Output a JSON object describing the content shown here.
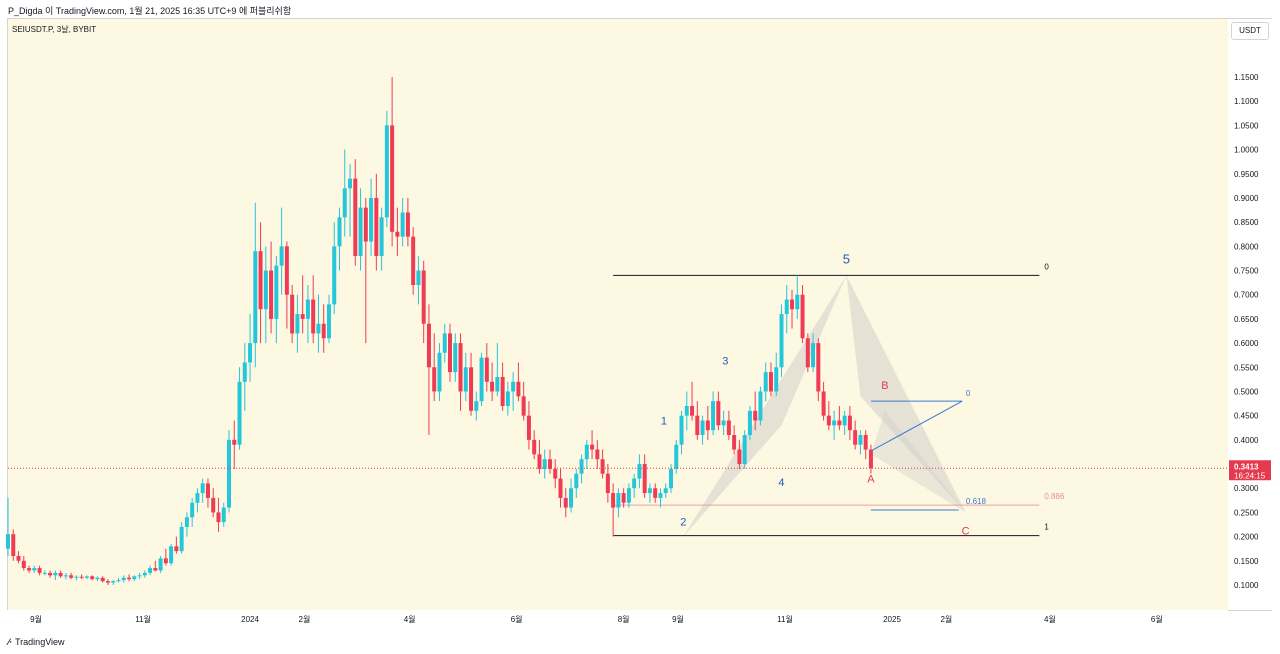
{
  "header": {
    "attribution": "P_Digda 이 TradingView.com, 1월 21, 2025 16:35 UTC+9 에 퍼블리쉬함",
    "symbol": "SEIUSDT.P, 3날, BYBIT"
  },
  "price_axis": {
    "currency": "USDT",
    "ticks": [
      "1.1500",
      "1.1000",
      "1.0500",
      "1.0000",
      "0.9500",
      "0.9000",
      "0.8500",
      "0.8000",
      "0.7500",
      "0.7000",
      "0.6500",
      "0.6000",
      "0.5500",
      "0.5000",
      "0.4500",
      "0.4000",
      "0.3500",
      "0.3000",
      "0.2500",
      "0.2000",
      "0.1500",
      "0.1000"
    ],
    "current_price": "0.3413",
    "countdown": "16:24:15"
  },
  "time_axis": {
    "ticks": [
      "9월",
      "11월",
      "2024",
      "2월",
      "4월",
      "6월",
      "8월",
      "9월",
      "11월",
      "2025",
      "2월",
      "4월",
      "6월"
    ]
  },
  "footer": {
    "brand": "TradingView"
  },
  "annotations": {
    "wave_labels": [
      "1",
      "2",
      "3",
      "4",
      "5"
    ],
    "corrective_labels": [
      "A",
      "B",
      "C"
    ],
    "fib_right": {
      "level0": "0",
      "level0886": "0.886",
      "level1": "1"
    },
    "fib_mid": {
      "level0": "0",
      "level0618": "0.618"
    }
  },
  "colors": {
    "up": "#26c6da",
    "down": "#ef3b53",
    "wave_label": "#1e5bbf",
    "abc_label": "#e53950",
    "price_line": "#e53950",
    "pattern_fill": "#c8c8c8"
  },
  "chart_data": {
    "type": "candlestick",
    "timeframe": "3D",
    "ylim": [
      0.05,
      1.18
    ],
    "x_range": [
      "2023-08-16",
      "2025-07-11"
    ],
    "wave_points": [
      {
        "label": "1",
        "date": "2024-08-24",
        "price": 0.37
      },
      {
        "label": "2",
        "date": "2024-09-04",
        "price": 0.26
      },
      {
        "label": "3",
        "date": "2024-09-28",
        "price": 0.51
      },
      {
        "label": "4",
        "date": "2024-10-30",
        "price": 0.35
      },
      {
        "label": "5",
        "date": "2024-12-06",
        "price": 0.74
      }
    ],
    "abc_points": [
      {
        "label": "A",
        "date": "2024-12-20",
        "price": 0.37
      },
      {
        "label": "B",
        "date": "2024-12-28",
        "price": 0.48
      },
      {
        "label": "C",
        "date": "2025-02-12",
        "price": 0.25
      }
    ],
    "fib_levels": [
      {
        "label": "0",
        "price": 0.74
      },
      {
        "label": "0.886",
        "price": 0.265
      },
      {
        "label": "1",
        "price": 0.202
      }
    ],
    "fib_mid_levels": [
      {
        "label": "0",
        "price": 0.48
      },
      {
        "label": "0.618",
        "price": 0.255
      }
    ],
    "candles": [
      [
        "2023-08-16",
        0.175,
        0.28,
        0.16,
        0.205
      ],
      [
        "2023-08-19",
        0.205,
        0.215,
        0.15,
        0.16
      ],
      [
        "2023-08-22",
        0.16,
        0.17,
        0.145,
        0.15
      ],
      [
        "2023-08-25",
        0.15,
        0.16,
        0.13,
        0.135
      ],
      [
        "2023-08-28",
        0.135,
        0.14,
        0.125,
        0.13
      ],
      [
        "2023-08-31",
        0.13,
        0.14,
        0.125,
        0.135
      ],
      [
        "2023-09-03",
        0.135,
        0.14,
        0.12,
        0.125
      ],
      [
        "2023-09-06",
        0.125,
        0.13,
        0.12,
        0.125
      ],
      [
        "2023-09-09",
        0.125,
        0.13,
        0.115,
        0.12
      ],
      [
        "2023-09-12",
        0.12,
        0.13,
        0.11,
        0.125
      ],
      [
        "2023-09-15",
        0.125,
        0.13,
        0.115,
        0.118
      ],
      [
        "2023-09-18",
        0.118,
        0.125,
        0.112,
        0.12
      ],
      [
        "2023-09-21",
        0.12,
        0.125,
        0.112,
        0.115
      ],
      [
        "2023-09-24",
        0.115,
        0.12,
        0.11,
        0.117
      ],
      [
        "2023-09-27",
        0.117,
        0.122,
        0.112,
        0.115
      ],
      [
        "2023-09-30",
        0.115,
        0.12,
        0.112,
        0.118
      ],
      [
        "2023-10-03",
        0.118,
        0.12,
        0.11,
        0.112
      ],
      [
        "2023-10-06",
        0.112,
        0.118,
        0.108,
        0.115
      ],
      [
        "2023-10-09",
        0.115,
        0.118,
        0.105,
        0.108
      ],
      [
        "2023-10-12",
        0.108,
        0.112,
        0.1,
        0.105
      ],
      [
        "2023-10-15",
        0.105,
        0.11,
        0.1,
        0.108
      ],
      [
        "2023-10-18",
        0.108,
        0.115,
        0.105,
        0.11
      ],
      [
        "2023-10-21",
        0.11,
        0.12,
        0.105,
        0.115
      ],
      [
        "2023-10-24",
        0.115,
        0.122,
        0.108,
        0.112
      ],
      [
        "2023-10-27",
        0.112,
        0.12,
        0.108,
        0.118
      ],
      [
        "2023-10-30",
        0.118,
        0.125,
        0.112,
        0.12
      ],
      [
        "2023-11-02",
        0.12,
        0.13,
        0.115,
        0.125
      ],
      [
        "2023-11-05",
        0.125,
        0.14,
        0.12,
        0.135
      ],
      [
        "2023-11-08",
        0.135,
        0.15,
        0.128,
        0.13
      ],
      [
        "2023-11-11",
        0.13,
        0.16,
        0.125,
        0.155
      ],
      [
        "2023-11-14",
        0.155,
        0.175,
        0.14,
        0.145
      ],
      [
        "2023-11-17",
        0.145,
        0.185,
        0.14,
        0.18
      ],
      [
        "2023-11-20",
        0.18,
        0.2,
        0.165,
        0.17
      ],
      [
        "2023-11-23",
        0.17,
        0.23,
        0.165,
        0.22
      ],
      [
        "2023-11-26",
        0.22,
        0.25,
        0.2,
        0.24
      ],
      [
        "2023-11-29",
        0.24,
        0.28,
        0.22,
        0.27
      ],
      [
        "2023-12-02",
        0.27,
        0.3,
        0.25,
        0.29
      ],
      [
        "2023-12-05",
        0.29,
        0.32,
        0.27,
        0.31
      ],
      [
        "2023-12-08",
        0.31,
        0.32,
        0.26,
        0.28
      ],
      [
        "2023-12-11",
        0.28,
        0.3,
        0.24,
        0.25
      ],
      [
        "2023-12-14",
        0.25,
        0.28,
        0.21,
        0.23
      ],
      [
        "2023-12-17",
        0.23,
        0.27,
        0.22,
        0.26
      ],
      [
        "2023-12-20",
        0.26,
        0.42,
        0.25,
        0.4
      ],
      [
        "2023-12-23",
        0.4,
        0.44,
        0.34,
        0.39
      ],
      [
        "2023-12-26",
        0.39,
        0.55,
        0.38,
        0.52
      ],
      [
        "2023-12-29",
        0.52,
        0.6,
        0.46,
        0.56
      ],
      [
        "2024-01-01",
        0.56,
        0.66,
        0.52,
        0.6
      ],
      [
        "2024-01-04",
        0.6,
        0.89,
        0.55,
        0.79
      ],
      [
        "2024-01-07",
        0.79,
        0.85,
        0.6,
        0.67
      ],
      [
        "2024-01-10",
        0.67,
        0.8,
        0.6,
        0.75
      ],
      [
        "2024-01-13",
        0.75,
        0.81,
        0.62,
        0.65
      ],
      [
        "2024-01-16",
        0.65,
        0.78,
        0.6,
        0.76
      ],
      [
        "2024-01-19",
        0.76,
        0.88,
        0.7,
        0.8
      ],
      [
        "2024-01-22",
        0.8,
        0.81,
        0.63,
        0.7
      ],
      [
        "2024-01-25",
        0.7,
        0.72,
        0.6,
        0.62
      ],
      [
        "2024-01-28",
        0.62,
        0.7,
        0.58,
        0.66
      ],
      [
        "2024-01-31",
        0.66,
        0.74,
        0.62,
        0.65
      ],
      [
        "2024-02-03",
        0.65,
        0.72,
        0.6,
        0.69
      ],
      [
        "2024-02-06",
        0.69,
        0.74,
        0.6,
        0.62
      ],
      [
        "2024-02-09",
        0.62,
        0.7,
        0.58,
        0.64
      ],
      [
        "2024-02-12",
        0.64,
        0.68,
        0.58,
        0.61
      ],
      [
        "2024-02-15",
        0.61,
        0.7,
        0.6,
        0.68
      ],
      [
        "2024-02-18",
        0.68,
        0.85,
        0.66,
        0.8
      ],
      [
        "2024-02-21",
        0.8,
        0.88,
        0.75,
        0.86
      ],
      [
        "2024-02-24",
        0.86,
        1.0,
        0.82,
        0.92
      ],
      [
        "2024-02-27",
        0.92,
        0.97,
        0.82,
        0.94
      ],
      [
        "2024-03-01",
        0.94,
        0.98,
        0.76,
        0.78
      ],
      [
        "2024-03-04",
        0.78,
        0.92,
        0.75,
        0.88
      ],
      [
        "2024-03-07",
        0.88,
        0.9,
        0.6,
        0.81
      ],
      [
        "2024-03-10",
        0.81,
        0.94,
        0.78,
        0.9
      ],
      [
        "2024-03-13",
        0.9,
        0.95,
        0.75,
        0.78
      ],
      [
        "2024-03-16",
        0.78,
        0.88,
        0.75,
        0.86
      ],
      [
        "2024-03-19",
        0.86,
        1.08,
        0.84,
        1.05
      ],
      [
        "2024-03-22",
        1.05,
        1.15,
        0.8,
        0.83
      ],
      [
        "2024-03-25",
        0.83,
        0.88,
        0.78,
        0.82
      ],
      [
        "2024-03-28",
        0.82,
        0.9,
        0.8,
        0.87
      ],
      [
        "2024-03-31",
        0.87,
        0.9,
        0.8,
        0.82
      ],
      [
        "2024-04-03",
        0.82,
        0.84,
        0.7,
        0.72
      ],
      [
        "2024-04-06",
        0.72,
        0.78,
        0.68,
        0.75
      ],
      [
        "2024-04-09",
        0.75,
        0.77,
        0.6,
        0.64
      ],
      [
        "2024-04-12",
        0.64,
        0.68,
        0.41,
        0.55
      ],
      [
        "2024-04-15",
        0.55,
        0.62,
        0.48,
        0.5
      ],
      [
        "2024-04-18",
        0.5,
        0.6,
        0.48,
        0.58
      ],
      [
        "2024-04-21",
        0.58,
        0.64,
        0.56,
        0.62
      ],
      [
        "2024-04-24",
        0.62,
        0.64,
        0.52,
        0.54
      ],
      [
        "2024-04-27",
        0.54,
        0.62,
        0.52,
        0.6
      ],
      [
        "2024-04-30",
        0.6,
        0.62,
        0.46,
        0.5
      ],
      [
        "2024-05-03",
        0.5,
        0.58,
        0.48,
        0.55
      ],
      [
        "2024-05-06",
        0.55,
        0.58,
        0.45,
        0.46
      ],
      [
        "2024-05-09",
        0.46,
        0.5,
        0.44,
        0.48
      ],
      [
        "2024-05-12",
        0.48,
        0.58,
        0.47,
        0.57
      ],
      [
        "2024-05-15",
        0.57,
        0.6,
        0.5,
        0.52
      ],
      [
        "2024-05-18",
        0.52,
        0.56,
        0.48,
        0.5
      ],
      [
        "2024-05-21",
        0.5,
        0.6,
        0.49,
        0.53
      ],
      [
        "2024-05-24",
        0.53,
        0.56,
        0.46,
        0.47
      ],
      [
        "2024-05-27",
        0.47,
        0.52,
        0.45,
        0.5
      ],
      [
        "2024-05-30",
        0.5,
        0.54,
        0.46,
        0.52
      ],
      [
        "2024-06-02",
        0.52,
        0.56,
        0.48,
        0.49
      ],
      [
        "2024-06-05",
        0.49,
        0.52,
        0.44,
        0.45
      ],
      [
        "2024-06-08",
        0.45,
        0.48,
        0.38,
        0.4
      ],
      [
        "2024-06-11",
        0.4,
        0.42,
        0.36,
        0.37
      ],
      [
        "2024-06-14",
        0.37,
        0.4,
        0.33,
        0.34
      ],
      [
        "2024-06-17",
        0.34,
        0.38,
        0.32,
        0.36
      ],
      [
        "2024-06-20",
        0.36,
        0.38,
        0.33,
        0.34
      ],
      [
        "2024-06-23",
        0.34,
        0.36,
        0.3,
        0.32
      ],
      [
        "2024-06-26",
        0.32,
        0.34,
        0.26,
        0.28
      ],
      [
        "2024-06-29",
        0.28,
        0.3,
        0.24,
        0.26
      ],
      [
        "2024-07-02",
        0.26,
        0.32,
        0.25,
        0.3
      ],
      [
        "2024-07-05",
        0.3,
        0.34,
        0.28,
        0.33
      ],
      [
        "2024-07-08",
        0.33,
        0.37,
        0.31,
        0.36
      ],
      [
        "2024-07-11",
        0.36,
        0.4,
        0.34,
        0.39
      ],
      [
        "2024-07-14",
        0.39,
        0.42,
        0.36,
        0.38
      ],
      [
        "2024-07-17",
        0.38,
        0.4,
        0.34,
        0.36
      ],
      [
        "2024-07-20",
        0.36,
        0.38,
        0.32,
        0.33
      ],
      [
        "2024-07-23",
        0.33,
        0.35,
        0.27,
        0.29
      ],
      [
        "2024-07-26",
        0.29,
        0.31,
        0.2,
        0.26
      ],
      [
        "2024-07-29",
        0.26,
        0.3,
        0.24,
        0.29
      ],
      [
        "2024-08-01",
        0.29,
        0.3,
        0.26,
        0.27
      ],
      [
        "2024-08-04",
        0.27,
        0.31,
        0.26,
        0.3
      ],
      [
        "2024-08-07",
        0.3,
        0.33,
        0.28,
        0.32
      ],
      [
        "2024-08-10",
        0.32,
        0.37,
        0.3,
        0.35
      ],
      [
        "2024-08-13",
        0.35,
        0.37,
        0.28,
        0.29
      ],
      [
        "2024-08-16",
        0.29,
        0.31,
        0.27,
        0.3
      ],
      [
        "2024-08-19",
        0.3,
        0.31,
        0.27,
        0.28
      ],
      [
        "2024-08-22",
        0.28,
        0.3,
        0.26,
        0.29
      ],
      [
        "2024-08-25",
        0.29,
        0.31,
        0.28,
        0.3
      ],
      [
        "2024-08-28",
        0.3,
        0.35,
        0.29,
        0.34
      ],
      [
        "2024-08-31",
        0.34,
        0.4,
        0.33,
        0.39
      ],
      [
        "2024-09-03",
        0.39,
        0.46,
        0.37,
        0.45
      ],
      [
        "2024-09-06",
        0.45,
        0.5,
        0.42,
        0.47
      ],
      [
        "2024-09-09",
        0.47,
        0.52,
        0.44,
        0.45
      ],
      [
        "2024-09-12",
        0.45,
        0.48,
        0.4,
        0.41
      ],
      [
        "2024-09-15",
        0.41,
        0.45,
        0.39,
        0.44
      ],
      [
        "2024-09-18",
        0.44,
        0.47,
        0.4,
        0.42
      ],
      [
        "2024-09-21",
        0.42,
        0.5,
        0.41,
        0.48
      ],
      [
        "2024-09-24",
        0.48,
        0.5,
        0.42,
        0.43
      ],
      [
        "2024-09-27",
        0.43,
        0.46,
        0.41,
        0.44
      ],
      [
        "2024-09-30",
        0.44,
        0.46,
        0.4,
        0.41
      ],
      [
        "2024-10-03",
        0.41,
        0.43,
        0.37,
        0.38
      ],
      [
        "2024-10-06",
        0.38,
        0.4,
        0.34,
        0.35
      ],
      [
        "2024-10-09",
        0.35,
        0.42,
        0.34,
        0.41
      ],
      [
        "2024-10-12",
        0.41,
        0.47,
        0.4,
        0.46
      ],
      [
        "2024-10-15",
        0.46,
        0.5,
        0.42,
        0.44
      ],
      [
        "2024-10-18",
        0.44,
        0.51,
        0.43,
        0.5
      ],
      [
        "2024-10-21",
        0.5,
        0.56,
        0.48,
        0.54
      ],
      [
        "2024-10-24",
        0.54,
        0.56,
        0.49,
        0.5
      ],
      [
        "2024-10-27",
        0.5,
        0.58,
        0.49,
        0.55
      ],
      [
        "2024-10-30",
        0.55,
        0.68,
        0.53,
        0.66
      ],
      [
        "2024-11-02",
        0.66,
        0.72,
        0.62,
        0.69
      ],
      [
        "2024-11-05",
        0.69,
        0.71,
        0.63,
        0.67
      ],
      [
        "2024-11-08",
        0.67,
        0.74,
        0.65,
        0.7
      ],
      [
        "2024-11-11",
        0.7,
        0.72,
        0.6,
        0.61
      ],
      [
        "2024-11-14",
        0.61,
        0.62,
        0.54,
        0.55
      ],
      [
        "2024-11-17",
        0.55,
        0.62,
        0.54,
        0.6
      ],
      [
        "2024-11-20",
        0.6,
        0.61,
        0.48,
        0.5
      ],
      [
        "2024-11-23",
        0.5,
        0.52,
        0.44,
        0.45
      ],
      [
        "2024-11-26",
        0.45,
        0.48,
        0.42,
        0.43
      ],
      [
        "2024-11-29",
        0.43,
        0.46,
        0.4,
        0.44
      ],
      [
        "2024-12-02",
        0.44,
        0.47,
        0.42,
        0.43
      ],
      [
        "2024-12-05",
        0.43,
        0.46,
        0.41,
        0.45
      ],
      [
        "2024-12-08",
        0.45,
        0.47,
        0.4,
        0.42
      ],
      [
        "2024-12-11",
        0.42,
        0.44,
        0.38,
        0.39
      ],
      [
        "2024-12-14",
        0.39,
        0.42,
        0.37,
        0.41
      ],
      [
        "2024-12-17",
        0.41,
        0.42,
        0.36,
        0.38
      ],
      [
        "2024-12-20",
        0.38,
        0.39,
        0.33,
        0.3413
      ]
    ]
  }
}
